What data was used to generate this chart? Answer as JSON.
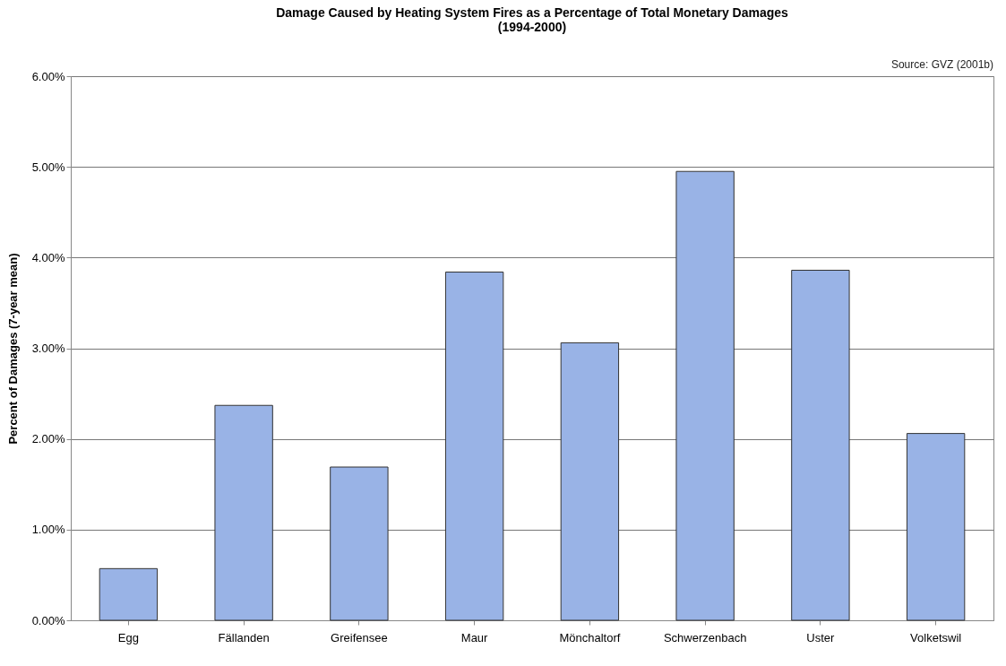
{
  "chart_data": {
    "type": "bar",
    "title": "Damage Caused by Heating System Fires as a Percentage of Total Monetary Damages\n(1994-2000)",
    "ylabel": "Percent of Damages (7-year mean)",
    "annotations": [
      "Source: GVZ (2001b)"
    ],
    "categories": [
      "Egg",
      "Fällanden",
      "Greifensee",
      "Maur",
      "Mönchaltorf",
      "Schwerzenbach",
      "Uster",
      "Volketswil"
    ],
    "values": [
      0.57,
      2.37,
      1.69,
      3.84,
      3.06,
      4.95,
      3.86,
      2.06
    ],
    "color": "#99b3e6",
    "ylim": [
      0,
      6
    ],
    "yticks": [
      {
        "value": 0,
        "label": "0.00%"
      },
      {
        "value": 1,
        "label": "1.00%"
      },
      {
        "value": 2,
        "label": "2.00%"
      },
      {
        "value": 3,
        "label": "3.00%"
      },
      {
        "value": 4,
        "label": "4.00%"
      },
      {
        "value": 5,
        "label": "5.00%"
      },
      {
        "value": 6,
        "label": "6.00%"
      }
    ],
    "grid": "y"
  }
}
